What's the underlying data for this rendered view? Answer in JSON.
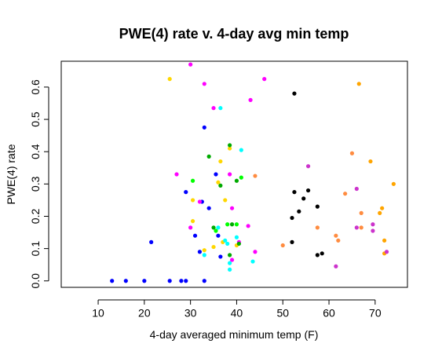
{
  "chart_data": {
    "type": "scatter",
    "title": "PWE(4) rate v. 4-day avg min temp",
    "xlabel": "4-day averaged minimum temp (F)",
    "ylabel": "PWE(4) rate",
    "xlim": [
      2,
      77
    ],
    "ylim": [
      -0.02,
      0.68
    ],
    "xticks": [
      10,
      20,
      30,
      40,
      50,
      60,
      70
    ],
    "yticks": [
      0.0,
      0.1,
      0.2,
      0.3,
      0.4,
      0.5,
      0.6
    ],
    "ytick_labels": [
      "0.0",
      "0.1",
      "0.2",
      "0.3",
      "0.4",
      "0.5",
      "0.6"
    ],
    "grid": false,
    "legend": "none",
    "points": [
      {
        "x": 13.0,
        "y": 0.0,
        "color": "#0000ff"
      },
      {
        "x": 16.0,
        "y": 0.0,
        "color": "#0000ff"
      },
      {
        "x": 20.0,
        "y": 0.0,
        "color": "#0000ff"
      },
      {
        "x": 21.5,
        "y": 0.12,
        "color": "#0000ff"
      },
      {
        "x": 25.5,
        "y": 0.0,
        "color": "#0000ff"
      },
      {
        "x": 28.0,
        "y": 0.0,
        "color": "#0000ff"
      },
      {
        "x": 29.0,
        "y": 0.0,
        "color": "#0000ff"
      },
      {
        "x": 33.0,
        "y": 0.0,
        "color": "#0000ff"
      },
      {
        "x": 29.0,
        "y": 0.275,
        "color": "#0000ff"
      },
      {
        "x": 31.0,
        "y": 0.14,
        "color": "#0000ff"
      },
      {
        "x": 32.5,
        "y": 0.245,
        "color": "#0000ff"
      },
      {
        "x": 33.0,
        "y": 0.475,
        "color": "#0000ff"
      },
      {
        "x": 34.0,
        "y": 0.225,
        "color": "#0000ff"
      },
      {
        "x": 35.5,
        "y": 0.33,
        "color": "#0000ff"
      },
      {
        "x": 36.0,
        "y": 0.14,
        "color": "#0000ff"
      },
      {
        "x": 32.0,
        "y": 0.09,
        "color": "#0000ff"
      },
      {
        "x": 36.5,
        "y": 0.075,
        "color": "#0000ff"
      },
      {
        "x": 25.5,
        "y": 0.625,
        "color": "#ffd700"
      },
      {
        "x": 30.5,
        "y": 0.25,
        "color": "#ffd700"
      },
      {
        "x": 30.5,
        "y": 0.185,
        "color": "#ffd700"
      },
      {
        "x": 33.0,
        "y": 0.095,
        "color": "#ffd700"
      },
      {
        "x": 35.0,
        "y": 0.105,
        "color": "#ffd700"
      },
      {
        "x": 36.5,
        "y": 0.37,
        "color": "#ffd700"
      },
      {
        "x": 37.0,
        "y": 0.12,
        "color": "#ffd700"
      },
      {
        "x": 37.5,
        "y": 0.25,
        "color": "#ffd700"
      },
      {
        "x": 38.5,
        "y": 0.41,
        "color": "#ffd700"
      },
      {
        "x": 40.0,
        "y": 0.11,
        "color": "#ffd700"
      },
      {
        "x": 36.0,
        "y": 0.305,
        "color": "#ffd700"
      },
      {
        "x": 30.0,
        "y": 0.67,
        "color": "#ff00ff"
      },
      {
        "x": 33.0,
        "y": 0.61,
        "color": "#ff00ff"
      },
      {
        "x": 35.0,
        "y": 0.535,
        "color": "#ff00ff"
      },
      {
        "x": 27.0,
        "y": 0.33,
        "color": "#ff00ff"
      },
      {
        "x": 30.0,
        "y": 0.165,
        "color": "#ff00ff"
      },
      {
        "x": 32.0,
        "y": 0.245,
        "color": "#ff00ff"
      },
      {
        "x": 38.5,
        "y": 0.33,
        "color": "#ff00ff"
      },
      {
        "x": 39.0,
        "y": 0.225,
        "color": "#ff00ff"
      },
      {
        "x": 39.0,
        "y": 0.065,
        "color": "#ff00ff"
      },
      {
        "x": 40.5,
        "y": 0.12,
        "color": "#ff00ff"
      },
      {
        "x": 42.5,
        "y": 0.17,
        "color": "#ff00ff"
      },
      {
        "x": 43.0,
        "y": 0.56,
        "color": "#ff00ff"
      },
      {
        "x": 46.0,
        "y": 0.625,
        "color": "#ff00ff"
      },
      {
        "x": 44.0,
        "y": 0.09,
        "color": "#ff00ff"
      },
      {
        "x": 36.5,
        "y": 0.535,
        "color": "#00ffff"
      },
      {
        "x": 36.0,
        "y": 0.165,
        "color": "#00ffff"
      },
      {
        "x": 33.0,
        "y": 0.08,
        "color": "#00ffff"
      },
      {
        "x": 37.5,
        "y": 0.125,
        "color": "#00ffff"
      },
      {
        "x": 38.5,
        "y": 0.055,
        "color": "#00ffff"
      },
      {
        "x": 38.5,
        "y": 0.035,
        "color": "#00ffff"
      },
      {
        "x": 38.0,
        "y": 0.115,
        "color": "#00ffff"
      },
      {
        "x": 40.0,
        "y": 0.135,
        "color": "#00ffff"
      },
      {
        "x": 41.0,
        "y": 0.405,
        "color": "#00ffff"
      },
      {
        "x": 43.5,
        "y": 0.06,
        "color": "#00ffff"
      },
      {
        "x": 34.0,
        "y": 0.385,
        "color": "#00aa00"
      },
      {
        "x": 35.0,
        "y": 0.165,
        "color": "#00aa00"
      },
      {
        "x": 36.5,
        "y": 0.295,
        "color": "#00aa00"
      },
      {
        "x": 38.5,
        "y": 0.42,
        "color": "#00aa00"
      },
      {
        "x": 38.5,
        "y": 0.08,
        "color": "#00aa00"
      },
      {
        "x": 39.0,
        "y": 0.175,
        "color": "#00aa00"
      },
      {
        "x": 40.0,
        "y": 0.31,
        "color": "#00aa00"
      },
      {
        "x": 40.5,
        "y": 0.115,
        "color": "#00aa00"
      },
      {
        "x": 30.5,
        "y": 0.31,
        "color": "#00ff00"
      },
      {
        "x": 35.5,
        "y": 0.155,
        "color": "#00ff00"
      },
      {
        "x": 38.0,
        "y": 0.175,
        "color": "#00ff00"
      },
      {
        "x": 40.0,
        "y": 0.175,
        "color": "#00ff00"
      },
      {
        "x": 41.0,
        "y": 0.32,
        "color": "#00ff00"
      },
      {
        "x": 44.0,
        "y": 0.325,
        "color": "#ff8c40"
      },
      {
        "x": 50.0,
        "y": 0.11,
        "color": "#ff8c40"
      },
      {
        "x": 57.5,
        "y": 0.165,
        "color": "#ff8c40"
      },
      {
        "x": 61.5,
        "y": 0.14,
        "color": "#ff8c40"
      },
      {
        "x": 62.0,
        "y": 0.125,
        "color": "#ff8c40"
      },
      {
        "x": 63.5,
        "y": 0.27,
        "color": "#ff8c40"
      },
      {
        "x": 65.0,
        "y": 0.395,
        "color": "#ff8c40"
      },
      {
        "x": 67.0,
        "y": 0.21,
        "color": "#ff8c40"
      },
      {
        "x": 67.0,
        "y": 0.165,
        "color": "#ff8c40"
      },
      {
        "x": 66.5,
        "y": 0.61,
        "color": "#ffa500"
      },
      {
        "x": 69.0,
        "y": 0.37,
        "color": "#ffa500"
      },
      {
        "x": 71.5,
        "y": 0.225,
        "color": "#ffa500"
      },
      {
        "x": 72.0,
        "y": 0.125,
        "color": "#ffa500"
      },
      {
        "x": 72.0,
        "y": 0.085,
        "color": "#ffa500"
      },
      {
        "x": 74.0,
        "y": 0.3,
        "color": "#ffa500"
      },
      {
        "x": 71.0,
        "y": 0.21,
        "color": "#ffa500"
      },
      {
        "x": 52.5,
        "y": 0.58,
        "color": "#000000"
      },
      {
        "x": 52.5,
        "y": 0.275,
        "color": "#000000"
      },
      {
        "x": 52.0,
        "y": 0.195,
        "color": "#000000"
      },
      {
        "x": 53.5,
        "y": 0.215,
        "color": "#000000"
      },
      {
        "x": 54.5,
        "y": 0.255,
        "color": "#000000"
      },
      {
        "x": 55.5,
        "y": 0.28,
        "color": "#000000"
      },
      {
        "x": 57.5,
        "y": 0.23,
        "color": "#000000"
      },
      {
        "x": 52.0,
        "y": 0.12,
        "color": "#000000"
      },
      {
        "x": 57.5,
        "y": 0.08,
        "color": "#000000"
      },
      {
        "x": 58.5,
        "y": 0.085,
        "color": "#000000"
      },
      {
        "x": 55.5,
        "y": 0.355,
        "color": "#cc33cc"
      },
      {
        "x": 61.5,
        "y": 0.045,
        "color": "#cc33cc"
      },
      {
        "x": 66.0,
        "y": 0.285,
        "color": "#cc33cc"
      },
      {
        "x": 66.0,
        "y": 0.165,
        "color": "#cc33cc"
      },
      {
        "x": 69.5,
        "y": 0.175,
        "color": "#cc33cc"
      },
      {
        "x": 69.5,
        "y": 0.155,
        "color": "#cc33cc"
      },
      {
        "x": 72.5,
        "y": 0.09,
        "color": "#cc33cc"
      }
    ]
  }
}
